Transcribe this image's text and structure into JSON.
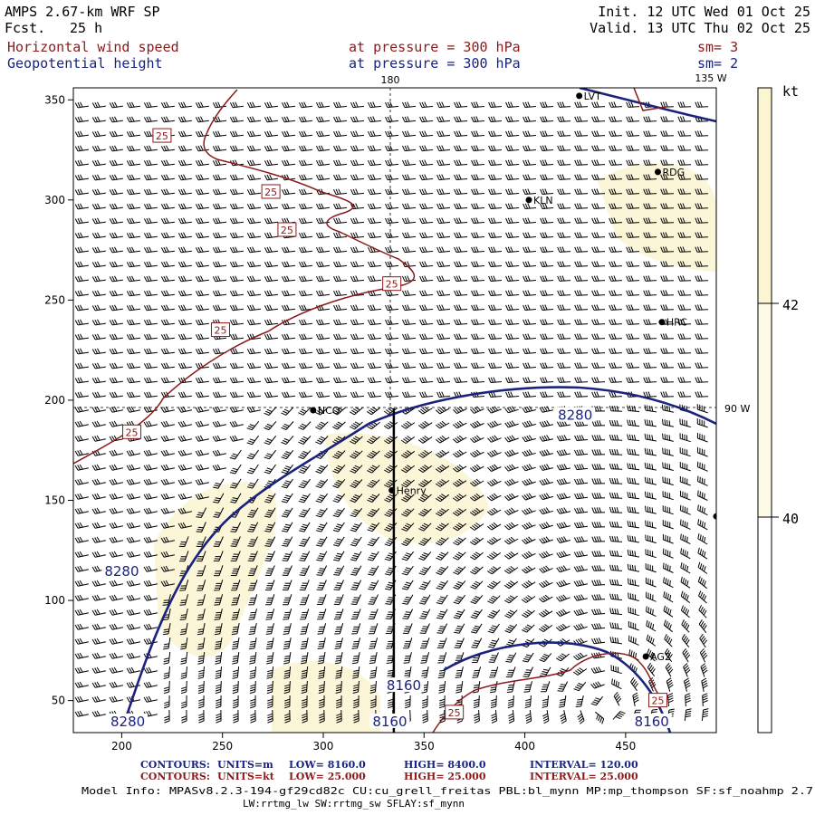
{
  "header": {
    "model": "AMPS 2.67-km WRF SP",
    "fcst_label": "Fcst.",
    "fcst_value": "25 h",
    "init": "Init. 12 UTC Wed 01 Oct 25",
    "valid": "Valid. 13 UTC Thu 02 Oct 25",
    "field1_name": "Horizontal wind speed",
    "field1_level": "at pressure =  300 hPa",
    "field1_sm": "sm= 3",
    "field2_name": "Geopotential height",
    "field2_level": "at pressure =  300 hPa",
    "field2_sm": "sm= 2"
  },
  "colors": {
    "height_contour": "#1a237e",
    "wind_contour": "#8b1a1a",
    "shade": "#fbf5d2",
    "barb": "#000000"
  },
  "map": {
    "grid_lon_180": "180",
    "grid_lon_135w": "135 W",
    "grid_lon_90w": "90 W",
    "stations": [
      {
        "name": "LVT",
        "x": 427,
        "y": 352
      },
      {
        "name": "RDG",
        "x": 466,
        "y": 314
      },
      {
        "name": "KLN",
        "x": 402,
        "y": 300
      },
      {
        "name": "HRC",
        "x": 468,
        "y": 239
      },
      {
        "name": "NCO",
        "x": 295,
        "y": 195
      },
      {
        "name": "Henry",
        "x": 334,
        "y": 155
      },
      {
        "name": "",
        "x": 495,
        "y": 142
      },
      {
        "name": "AG2",
        "x": 460,
        "y": 72
      }
    ],
    "height_labels": [
      {
        "text": "8280",
        "x": 425,
        "y": 192
      },
      {
        "text": "8280",
        "x": 200,
        "y": 114
      },
      {
        "text": "8280",
        "x": 203,
        "y": 39
      },
      {
        "text": "8160",
        "x": 340,
        "y": 57
      },
      {
        "text": "8160",
        "x": 333,
        "y": 39
      },
      {
        "text": "8160",
        "x": 463,
        "y": 39
      }
    ],
    "wind_labels": [
      {
        "text": "25",
        "x": 220,
        "y": 332
      },
      {
        "text": "25",
        "x": 274,
        "y": 304
      },
      {
        "text": "25",
        "x": 282,
        "y": 285
      },
      {
        "text": "25",
        "x": 334,
        "y": 258
      },
      {
        "text": "25",
        "x": 249,
        "y": 235
      },
      {
        "text": "25",
        "x": 205,
        "y": 184
      },
      {
        "text": "25",
        "x": 365,
        "y": 44
      },
      {
        "text": "25",
        "x": 466,
        "y": 50
      }
    ]
  },
  "chart_data": {
    "type": "contour",
    "x_ticks": [
      "200",
      "250",
      "300",
      "350",
      "400",
      "450"
    ],
    "y_ticks": [
      "50",
      "100",
      "150",
      "200",
      "250",
      "300",
      "350"
    ],
    "xlim": [
      176,
      495
    ],
    "ylim": [
      34,
      356
    ],
    "cross_section_x": 335,
    "cross_section_y_range": [
      34,
      196
    ],
    "colorbar": {
      "unit": "kt",
      "labels": [
        "42",
        "40"
      ]
    }
  },
  "footer": {
    "line1_contours": "CONTOURS:",
    "line1_units": "UNITS=m",
    "line1_low": "LOW=  8160.0",
    "line1_high": "HIGH=  8400.0",
    "line1_interval": "INTERVAL=   120.00",
    "line2_contours": "CONTOURS:",
    "line2_units": "UNITS=kt",
    "line2_low": "LOW=  25.000",
    "line2_high": "HIGH=  25.000",
    "line2_interval": "INTERVAL=   25.000",
    "model_info_1": "Model Info: MPASv8.2.3-194-gf29cd82c CU:cu_grell_freitas PBL:bl_mynn MP:mp_thompson SF:sf_noahmp 2.7",
    "model_info_2": "LW:rrtmg_lw SW:rrtmg_sw SFLAY:sf_mynn"
  }
}
